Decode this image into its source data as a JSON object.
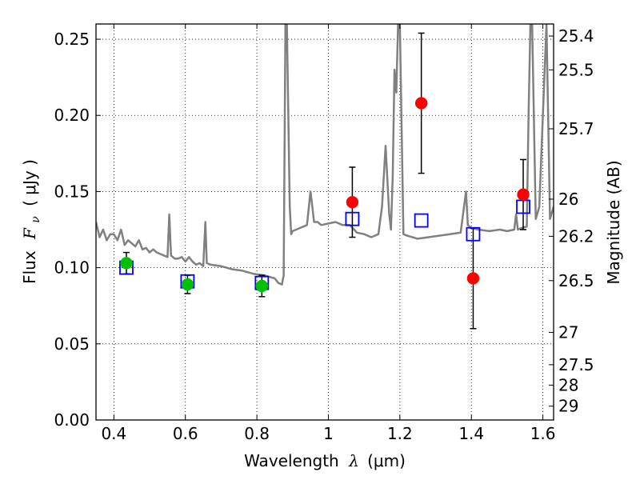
{
  "chart_data": {
    "type": "scatter",
    "xlabel_text": "Wavelength",
    "xlabel_symbol": "λ",
    "xlabel_unit": "(μm)",
    "ylabel_text": "Flux",
    "ylabel_symbol": "F",
    "ylabel_subscript": "ν",
    "ylabel_unit": "( μJy )",
    "y2label": "Magnitude (AB)",
    "xlim": [
      0.35,
      1.63
    ],
    "ylim": [
      0.0,
      0.26
    ],
    "grid": true,
    "x_ticks": [
      0.4,
      0.6,
      0.8,
      1.0,
      1.2,
      1.4,
      1.6
    ],
    "x_tick_labels": [
      "0.4",
      "0.6",
      "0.8",
      "1",
      "1.2",
      "1.4",
      "1.6"
    ],
    "y_ticks": [
      0.0,
      0.05,
      0.1,
      0.15,
      0.2,
      0.25
    ],
    "y_tick_labels": [
      "0.00",
      "0.05",
      "0.10",
      "0.15",
      "0.20",
      "0.25"
    ],
    "y2_ticks": [
      {
        "label": "25.4",
        "flux": 0.2521
      },
      {
        "label": "25.5",
        "flux": 0.2299
      },
      {
        "label": "25.7",
        "flux": 0.1912
      },
      {
        "label": "26",
        "flux": 0.145
      },
      {
        "label": "26.2",
        "flux": 0.1206
      },
      {
        "label": "26.5",
        "flux": 0.0915
      },
      {
        "label": "27",
        "flux": 0.0575
      },
      {
        "label": "27.5",
        "flux": 0.0363
      },
      {
        "label": "28",
        "flux": 0.0229
      },
      {
        "label": "29",
        "flux": 0.0091
      }
    ],
    "series": [
      {
        "marker": "green-circle",
        "color": "#00c000",
        "x": [
          0.435,
          0.606,
          0.814
        ],
        "y": [
          0.103,
          0.089,
          0.088
        ],
        "yerr": [
          0.007,
          0.006,
          0.007
        ]
      },
      {
        "marker": "red-circle",
        "color": "#ff0000",
        "x": [
          1.067,
          1.26,
          1.405,
          1.545
        ],
        "y": [
          0.143,
          0.208,
          0.093,
          0.148
        ],
        "yerr": [
          0.023,
          0.046,
          0.033,
          0.023
        ]
      },
      {
        "marker": "blue-open-square",
        "color": "#0000ff",
        "x": [
          0.435,
          0.606,
          0.814,
          1.067,
          1.26,
          1.405,
          1.545
        ],
        "y": [
          0.1,
          0.091,
          0.09,
          0.132,
          0.131,
          0.122,
          0.14
        ]
      },
      {
        "marker": "gray-line",
        "color": "#808080",
        "x": [
          0.35,
          0.36,
          0.37,
          0.38,
          0.39,
          0.4,
          0.41,
          0.42,
          0.43,
          0.44,
          0.45,
          0.46,
          0.47,
          0.48,
          0.49,
          0.5,
          0.51,
          0.52,
          0.53,
          0.54,
          0.55,
          0.555,
          0.56,
          0.57,
          0.58,
          0.59,
          0.6,
          0.61,
          0.62,
          0.63,
          0.64,
          0.65,
          0.656,
          0.66,
          0.67,
          0.7,
          0.73,
          0.76,
          0.79,
          0.82,
          0.85,
          0.86,
          0.87,
          0.875,
          0.88,
          0.884,
          0.888,
          0.892,
          0.896,
          0.9,
          0.92,
          0.94,
          0.95,
          0.955,
          0.96,
          0.97,
          0.98,
          1.0,
          1.02,
          1.04,
          1.06,
          1.08,
          1.1,
          1.12,
          1.14,
          1.15,
          1.16,
          1.17,
          1.175,
          1.18,
          1.185,
          1.19,
          1.195,
          1.2,
          1.21,
          1.22,
          1.25,
          1.28,
          1.31,
          1.34,
          1.37,
          1.385,
          1.39,
          1.4,
          1.42,
          1.45,
          1.48,
          1.5,
          1.52,
          1.525,
          1.53,
          1.54,
          1.555,
          1.56,
          1.565,
          1.57,
          1.58,
          1.59,
          1.6,
          1.61,
          1.62,
          1.63
        ],
        "y": [
          0.13,
          0.12,
          0.125,
          0.118,
          0.122,
          0.122,
          0.118,
          0.125,
          0.115,
          0.118,
          0.116,
          0.114,
          0.118,
          0.112,
          0.113,
          0.11,
          0.112,
          0.11,
          0.109,
          0.108,
          0.107,
          0.135,
          0.108,
          0.106,
          0.106,
          0.107,
          0.104,
          0.107,
          0.104,
          0.102,
          0.103,
          0.101,
          0.13,
          0.103,
          0.102,
          0.101,
          0.099,
          0.098,
          0.096,
          0.095,
          0.093,
          0.09,
          0.089,
          0.095,
          0.26,
          0.26,
          0.2,
          0.14,
          0.122,
          0.124,
          0.126,
          0.128,
          0.15,
          0.14,
          0.13,
          0.13,
          0.128,
          0.129,
          0.13,
          0.128,
          0.128,
          0.123,
          0.122,
          0.12,
          0.122,
          0.14,
          0.18,
          0.136,
          0.125,
          0.16,
          0.23,
          0.215,
          0.26,
          0.26,
          0.122,
          0.121,
          0.119,
          0.12,
          0.121,
          0.122,
          0.123,
          0.15,
          0.128,
          0.126,
          0.125,
          0.124,
          0.125,
          0.124,
          0.125,
          0.135,
          0.125,
          0.126,
          0.127,
          0.2,
          0.26,
          0.26,
          0.132,
          0.14,
          0.2,
          0.26,
          0.132,
          0.14
        ]
      }
    ]
  }
}
